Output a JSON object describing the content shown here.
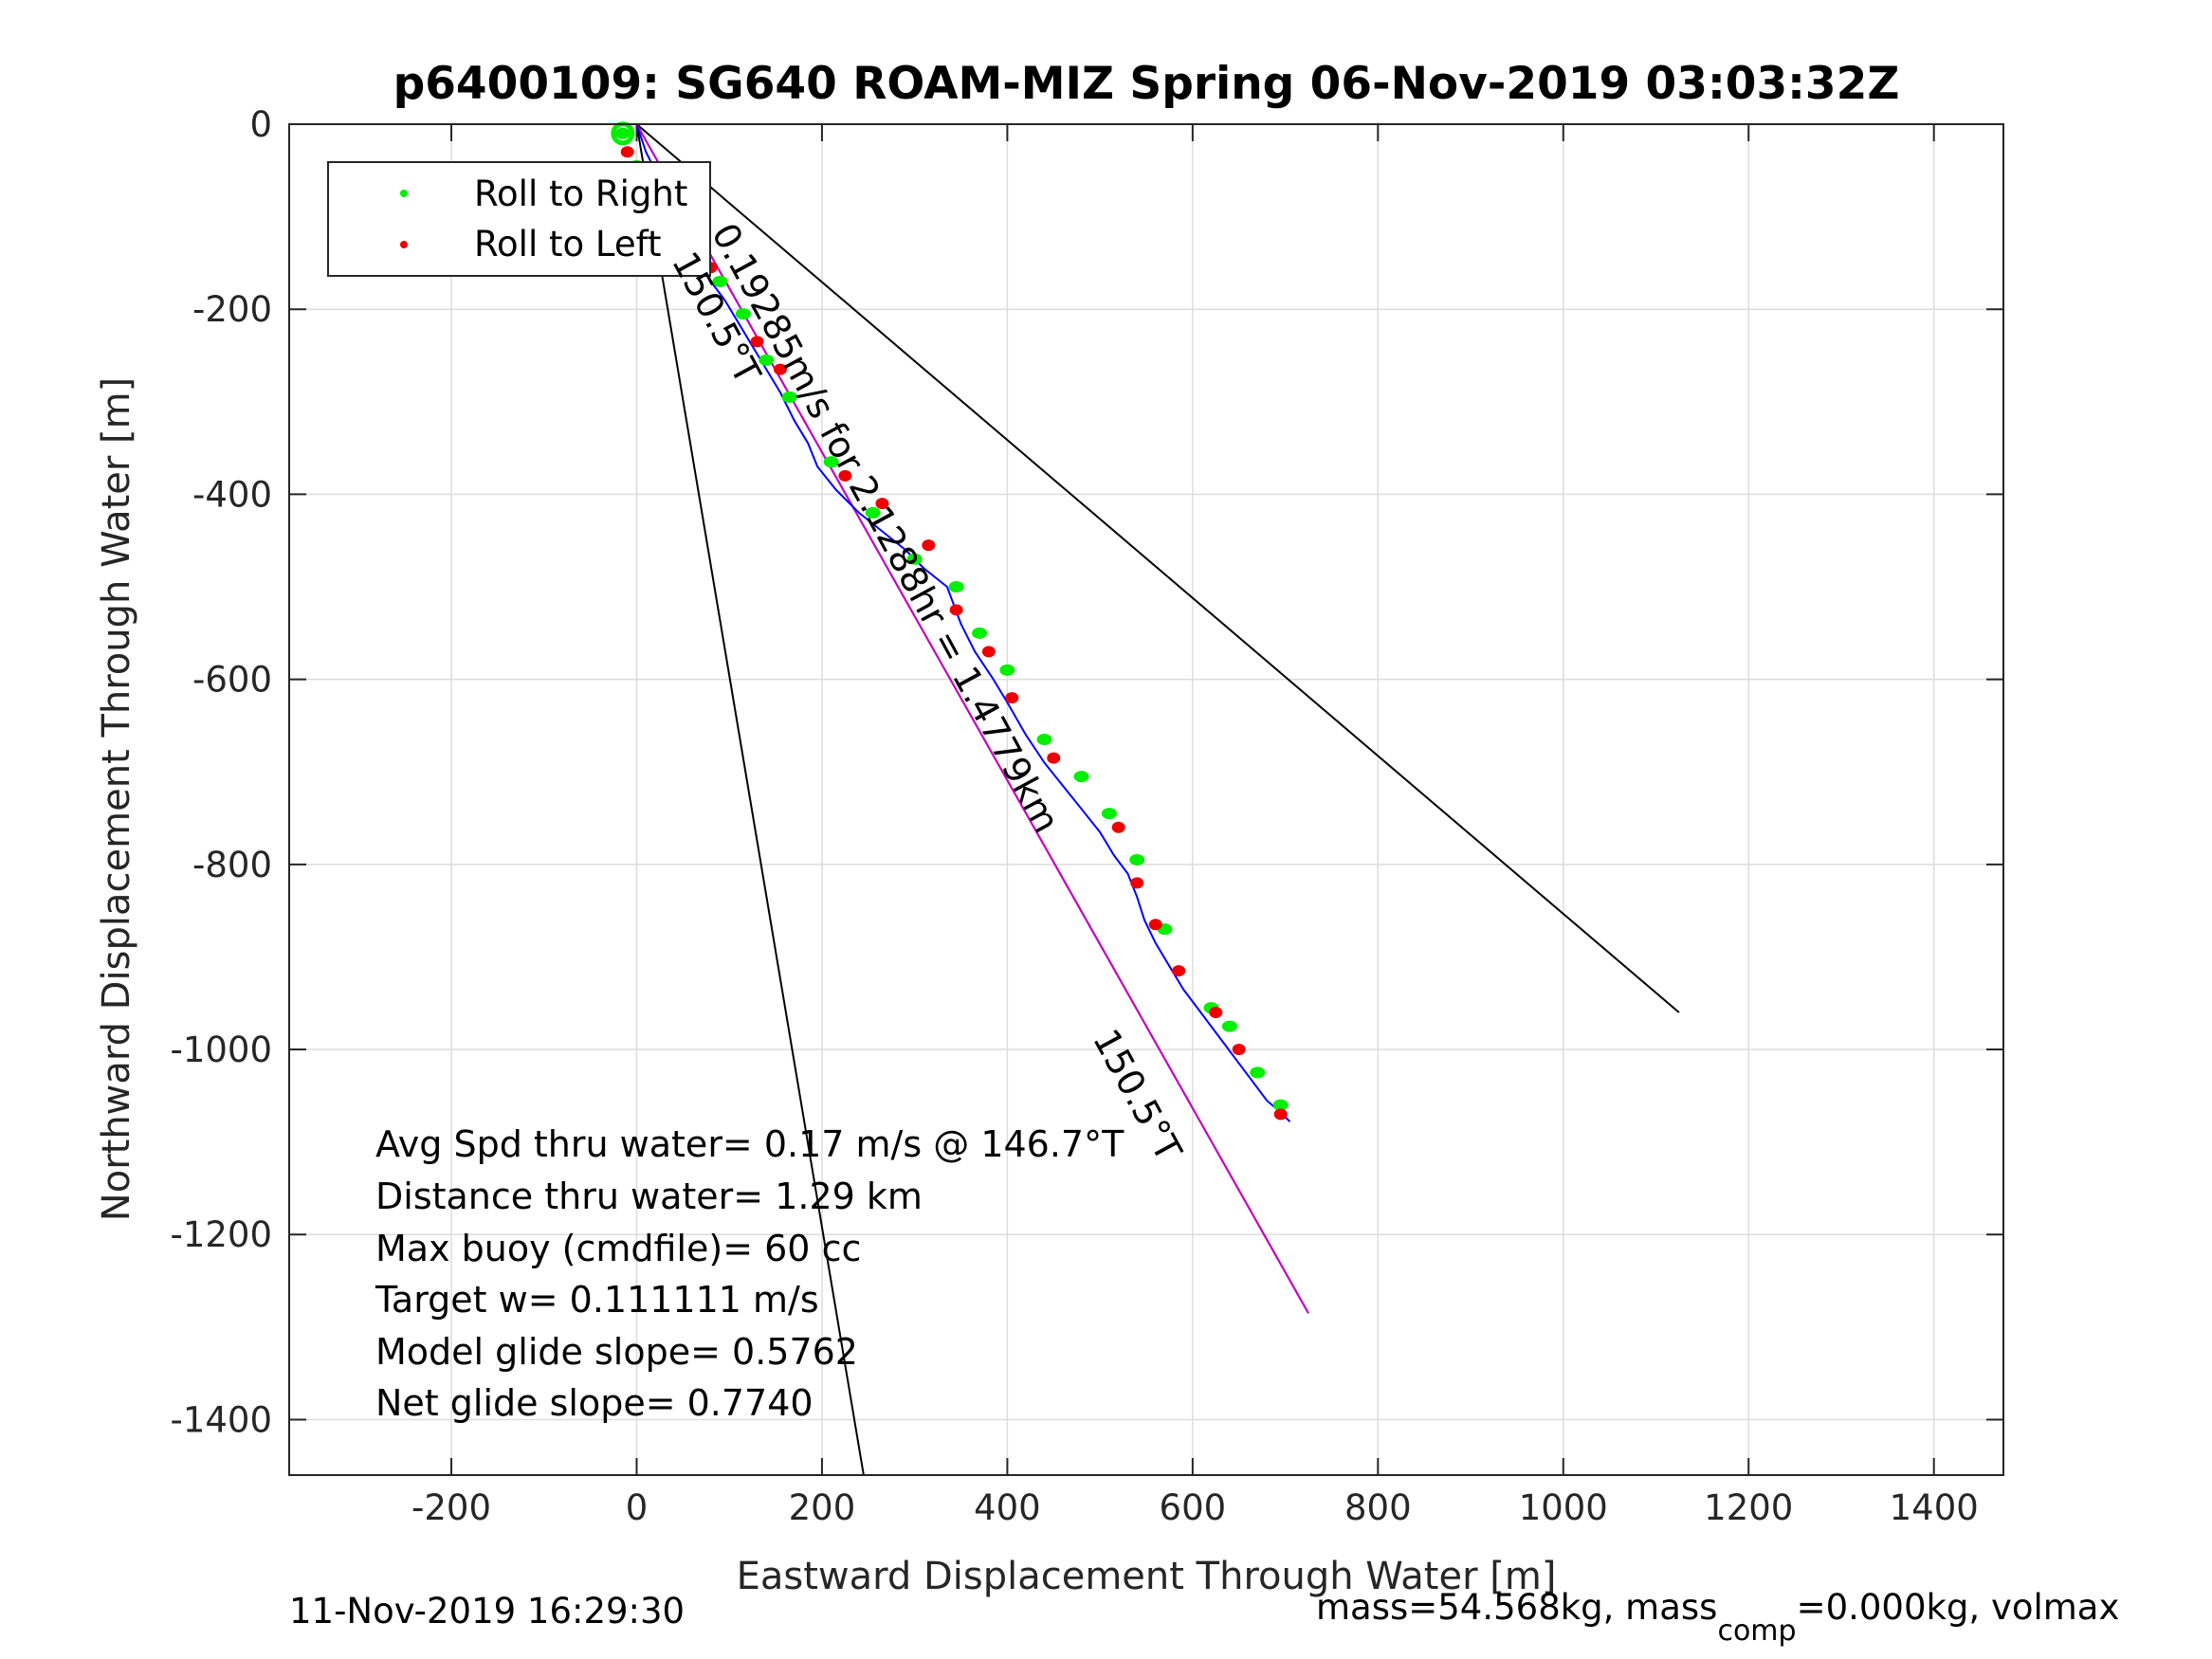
{
  "chart_data": {
    "type": "line",
    "title": "p6400109: SG640 ROAM-MIZ Spring 06-Nov-2019 03:03:32Z",
    "xlabel": "Eastward Displacement Through Water [m]",
    "ylabel": "Northward Displacement Through Water [m]",
    "xlim": [
      -375,
      1475
    ],
    "ylim": [
      -1460,
      0
    ],
    "x_ticks": [
      -200,
      0,
      200,
      400,
      600,
      800,
      1000,
      1200,
      1400
    ],
    "y_ticks": [
      0,
      -200,
      -400,
      -600,
      -800,
      -1000,
      -1200,
      -1400
    ],
    "grid": true,
    "legend": {
      "placement": "top-left",
      "entries": [
        {
          "name": "Roll to Right",
          "color": "#00ee00"
        },
        {
          "name": "Roll to Left",
          "color": "#ee0000"
        }
      ]
    },
    "series": [
      {
        "name": "track",
        "color": "#0000ff",
        "x": [
          0,
          10,
          25,
          40,
          50,
          60,
          70,
          80,
          95,
          110,
          125,
          140,
          155,
          170,
          185,
          195,
          215,
          240,
          265,
          290,
          310,
          335,
          350,
          365,
          385,
          400,
          420,
          440,
          460,
          480,
          500,
          515,
          530,
          540,
          548,
          560,
          575,
          590,
          605,
          620,
          635,
          650,
          665,
          680,
          695,
          705
        ],
        "y": [
          0,
          -30,
          -60,
          -90,
          -110,
          -130,
          -150,
          -170,
          -190,
          -215,
          -240,
          -265,
          -290,
          -320,
          -345,
          -370,
          -395,
          -420,
          -440,
          -460,
          -480,
          -500,
          -540,
          -570,
          -600,
          -625,
          -660,
          -690,
          -715,
          -740,
          -765,
          -790,
          -810,
          -835,
          -860,
          -885,
          -910,
          -935,
          -955,
          -975,
          -995,
          -1015,
          -1035,
          -1055,
          -1068,
          -1078
        ]
      },
      {
        "name": "depth-averaged current",
        "color": "#cc00cc",
        "x": [
          0,
          725
        ],
        "y": [
          0,
          -1285
        ]
      },
      {
        "name": "dive heading",
        "color": "#000000",
        "x": [
          0,
          725
        ],
        "y": [
          0,
          -1285
        ]
      },
      {
        "name": "heading bound",
        "color": "#000000",
        "x": [
          0,
          245
        ],
        "y": [
          0,
          -1460
        ]
      },
      {
        "name": "heading bound",
        "color": "#000000",
        "x": [
          0,
          1125
        ],
        "y": [
          0,
          -960
        ]
      }
    ],
    "roll_right_points": {
      "x": [
        -15,
        0,
        20,
        65,
        90,
        115,
        140,
        165,
        210,
        255,
        300,
        345,
        370,
        400,
        440,
        480,
        510,
        540,
        570,
        620,
        640,
        670,
        695
      ],
      "y": [
        -10,
        -45,
        -80,
        -130,
        -170,
        -205,
        -255,
        -295,
        -365,
        -420,
        -470,
        -500,
        -550,
        -590,
        -665,
        -705,
        -745,
        -795,
        -870,
        -955,
        -975,
        -1025,
        -1060
      ]
    },
    "roll_left_points": {
      "x": [
        -10,
        10,
        50,
        80,
        130,
        155,
        225,
        265,
        315,
        345,
        380,
        405,
        450,
        520,
        540,
        560,
        585,
        625,
        650,
        695
      ],
      "y": [
        -30,
        -60,
        -105,
        -155,
        -235,
        -265,
        -380,
        -410,
        -455,
        -525,
        -570,
        -620,
        -685,
        -760,
        -820,
        -865,
        -915,
        -960,
        -1000,
        -1070
      ]
    },
    "annotations": [
      "0.19285m/s for 2.1288hr = 1.4779km",
      "150.5°T",
      "150.5°T"
    ],
    "stats": [
      "Avg Spd thru water=  0.17 m/s @ 146.7°T",
      "Distance thru water=  1.29 km",
      "Max buoy (cmdfile)= 60 cc",
      "Target w= 0.111111 m/s",
      "Model glide slope= 0.5762",
      "Net glide slope= 0.7740"
    ]
  },
  "footer": {
    "timestamp": "11-Nov-2019 16:29:30",
    "mass_prefix": "mass=54.568kg, mass",
    "mass_sub": "comp",
    "mass_suffix": "=0.000kg, volmax"
  }
}
